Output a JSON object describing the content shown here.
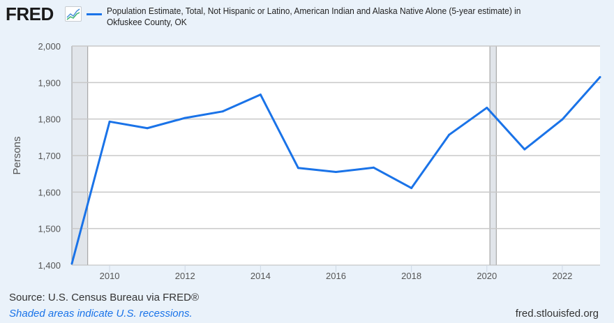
{
  "header": {
    "logo_text": "FRED",
    "logo_icon": "chart-line-icon",
    "series_title": "Population Estimate, Total, Not Hispanic or Latino, American Indian and Alaska Native Alone (5-year estimate) in Okfuskee County, OK"
  },
  "footer": {
    "source": "Source: U.S. Census Bureau via FRED®",
    "note": "Shaded areas indicate U.S. recessions.",
    "site": "fred.stlouisfed.org"
  },
  "colors": {
    "line": "#1a73e8",
    "recession": "#e1e5ea",
    "background": "#eaf2fa",
    "plot": "#ffffff",
    "grid": "#c8c8c8"
  },
  "chart_data": {
    "type": "line",
    "title": "Population Estimate, Total, Not Hispanic or Latino, American Indian and Alaska Native Alone (5-year estimate) in Okfuskee County, OK",
    "xlabel": "",
    "ylabel": "Persons",
    "xlim": [
      2009,
      2023
    ],
    "ylim": [
      1400,
      2000
    ],
    "grid": true,
    "legend": "top",
    "x_ticks": [
      "2010",
      "2012",
      "2014",
      "2016",
      "2018",
      "2020",
      "2022"
    ],
    "x_tick_values": [
      2010,
      2012,
      2014,
      2016,
      2018,
      2020,
      2022
    ],
    "y_ticks": [
      "1,400",
      "1,500",
      "1,600",
      "1,700",
      "1,800",
      "1,900",
      "2,000"
    ],
    "y_tick_values": [
      1400,
      1500,
      1600,
      1700,
      1800,
      1900,
      2000
    ],
    "recessions": [
      [
        2009.0,
        2009.42
      ],
      [
        2020.08,
        2020.25
      ]
    ],
    "series": [
      {
        "name": "Population Estimate, Total, Not Hispanic or Latino, American Indian and Alaska Native Alone (5-year estimate) in Okfuskee County, OK",
        "x": [
          2009,
          2010,
          2011,
          2012,
          2013,
          2014,
          2015,
          2016,
          2017,
          2018,
          2019,
          2020,
          2021,
          2022,
          2023
        ],
        "values": [
          1404,
          1793,
          1775,
          1803,
          1821,
          1867,
          1666,
          1655,
          1667,
          1611,
          1757,
          1831,
          1717,
          1799,
          1915
        ]
      }
    ]
  }
}
